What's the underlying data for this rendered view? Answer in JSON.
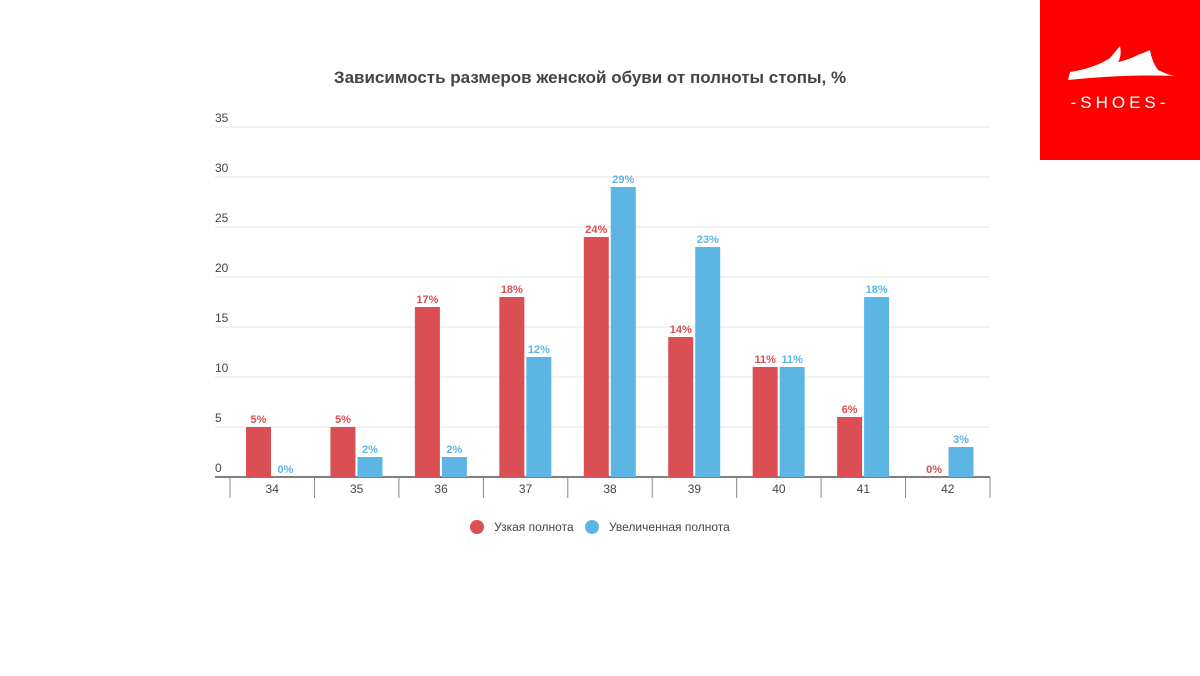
{
  "logo": {
    "text": "-SHOES-",
    "background": "#fe0000"
  },
  "chart_data": {
    "type": "bar",
    "title": "Зависимость размеров женской обуви от полноты стопы,  %",
    "xlabel": "",
    "ylabel": "",
    "ylim": [
      0,
      35
    ],
    "yticks": [
      0,
      5,
      10,
      15,
      20,
      25,
      30,
      35
    ],
    "grid": true,
    "legend_position": "bottom",
    "categories": [
      "34",
      "35",
      "36",
      "37",
      "38",
      "39",
      "40",
      "41",
      "42"
    ],
    "series": [
      {
        "name": "Узкая полнота",
        "color": "#d94f54",
        "values": [
          5,
          5,
          17,
          18,
          24,
          14,
          11,
          6,
          0
        ],
        "labels": [
          "5%",
          "5%",
          "17%",
          "18%",
          "24%",
          "14%",
          "11%",
          "6%",
          "0%"
        ]
      },
      {
        "name": "Увеличенная полнота",
        "color": "#5db5e3",
        "values": [
          0,
          2,
          2,
          12,
          29,
          23,
          11,
          18,
          3
        ],
        "labels": [
          "0%",
          "2%",
          "2%",
          "12%",
          "29%",
          "23%",
          "11%",
          "18%",
          "3%"
        ]
      }
    ]
  }
}
